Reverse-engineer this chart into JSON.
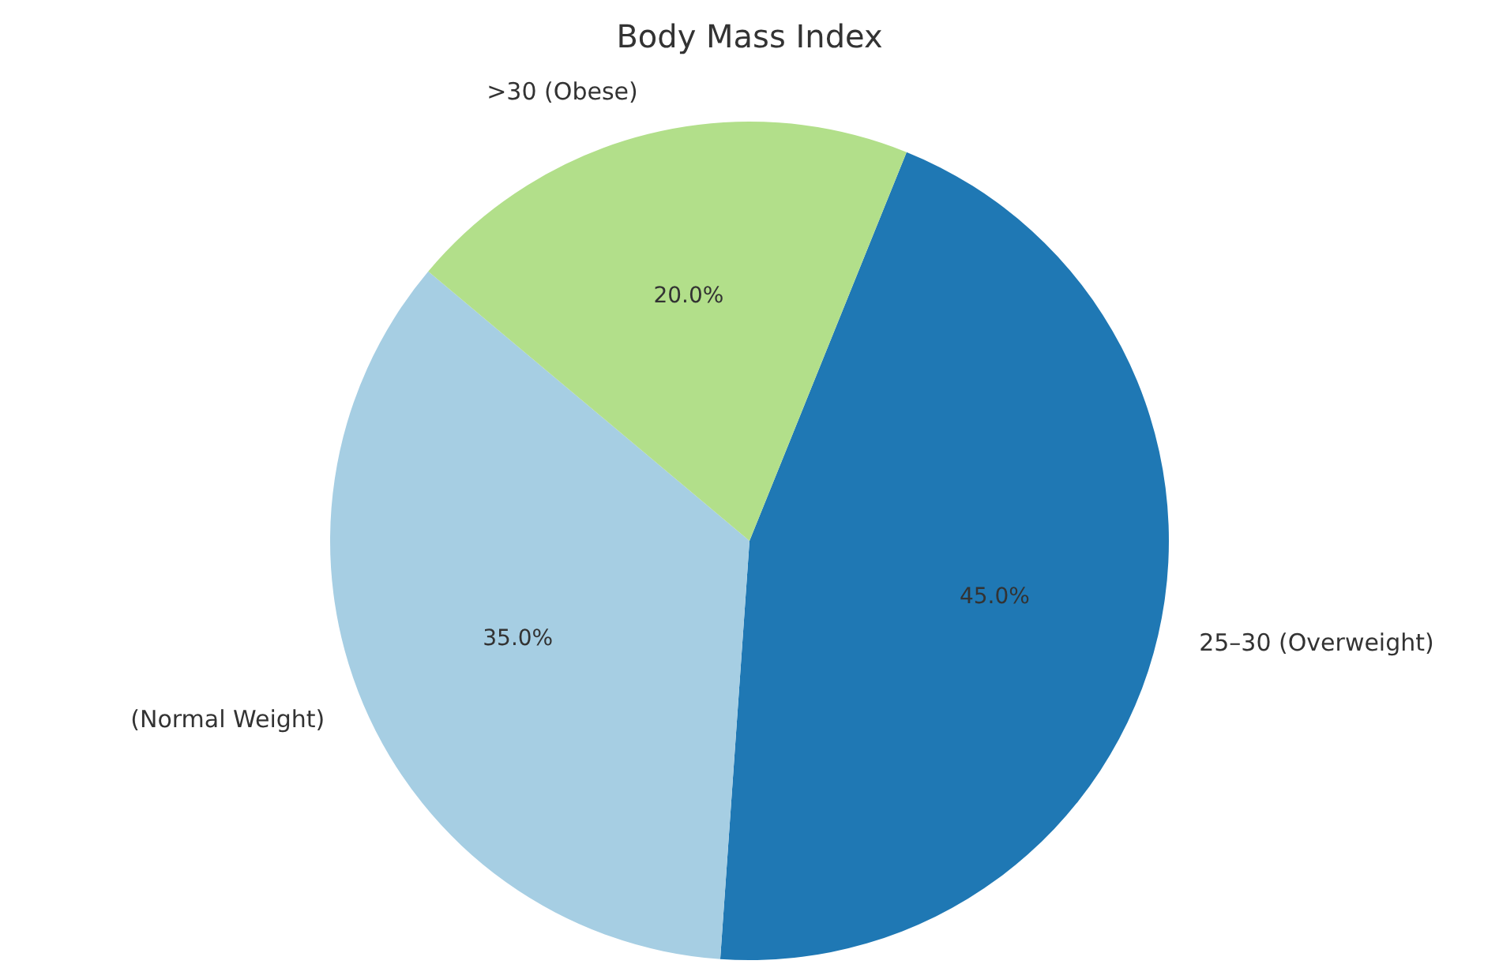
{
  "chart_data": {
    "type": "pie",
    "title": "Body Mass Index",
    "categories": [
      "25–30 (Overweight)",
      "(Normal Weight)",
      ">30 (Obese)"
    ],
    "values": [
      45,
      35,
      20
    ],
    "value_labels": [
      "45.0%",
      "35.0%",
      "20.0%"
    ],
    "colors": [
      "#1f78b4",
      "#a6cee3",
      "#b2df8a"
    ],
    "legend": false
  }
}
